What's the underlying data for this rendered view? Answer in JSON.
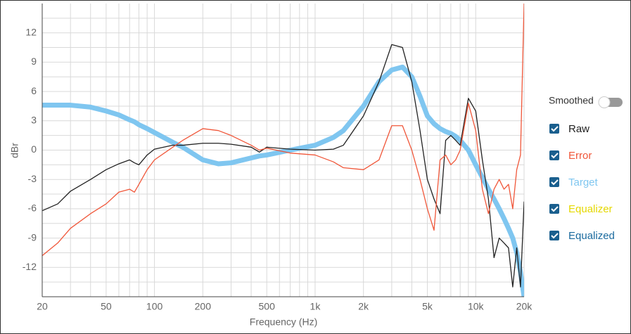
{
  "chart_data": {
    "type": "line",
    "xlabel": "Frequency (Hz)",
    "ylabel": "dBr",
    "xlog": true,
    "xlim": [
      20,
      20000
    ],
    "ylim": [
      -15,
      15
    ],
    "xticks": [
      20,
      50,
      100,
      200,
      500,
      {
        "value": 1000,
        "label": "1k"
      },
      {
        "value": 2000,
        "label": "2k"
      },
      {
        "value": 5000,
        "label": "5k"
      },
      {
        "value": 10000,
        "label": "10k"
      },
      {
        "value": 20000,
        "label": "20k"
      }
    ],
    "xgrid_minor": [
      30,
      40,
      60,
      70,
      80,
      90,
      300,
      400,
      600,
      700,
      800,
      900,
      3000,
      4000,
      6000,
      7000,
      8000,
      9000
    ],
    "yticks": [
      -12,
      -9,
      -6,
      -3,
      0,
      3,
      6,
      9,
      12
    ],
    "ygrid_minor": [
      -13.5,
      -10.5,
      -7.5,
      -4.5,
      -1.5,
      1.5,
      4.5,
      7.5,
      10.5,
      13.5
    ],
    "grid": true,
    "toggle_label": "Smoothed",
    "x": [
      20,
      25,
      30,
      40,
      50,
      60,
      70,
      75,
      80,
      90,
      100,
      130,
      150,
      200,
      250,
      300,
      400,
      450,
      500,
      700,
      1000,
      1300,
      1500,
      2000,
      2500,
      3000,
      3500,
      4000,
      4500,
      5000,
      5500,
      6000,
      6500,
      7000,
      7500,
      8000,
      9000,
      10000,
      11000,
      12000,
      13000,
      14000,
      15000,
      16000,
      17000,
      18000,
      19000,
      20000
    ],
    "series": [
      {
        "name": "Raw",
        "color": "#222222",
        "width": 1.3,
        "values": [
          -6.2,
          -5.5,
          -4.2,
          -3.0,
          -2.0,
          -1.4,
          -1.0,
          -1.3,
          -1.5,
          -0.5,
          0.1,
          0.5,
          0.5,
          0.7,
          0.7,
          0.6,
          0.3,
          -0.2,
          0.3,
          0.1,
          0.0,
          0.1,
          0.5,
          3.5,
          7.0,
          10.8,
          10.5,
          7.0,
          2.0,
          -3.0,
          -5.0,
          -6.5,
          1.0,
          1.5,
          1.0,
          0.5,
          5.3,
          4.0,
          -1.0,
          -5.0,
          -11.0,
          -9.0,
          -9.5,
          -10.0,
          -14.0,
          -10.0,
          -14.0,
          -5.3
        ]
      },
      {
        "name": "Error",
        "color": "#f0573a",
        "width": 1.3,
        "values": [
          -10.8,
          -9.5,
          -8.0,
          -6.5,
          -5.5,
          -4.3,
          -4.0,
          -4.3,
          -3.5,
          -2.0,
          -1.0,
          0.3,
          1.0,
          2.2,
          2.0,
          1.5,
          0.5,
          0.0,
          0.2,
          -0.3,
          -0.5,
          -1.2,
          -1.8,
          -2.0,
          -1.0,
          2.5,
          2.5,
          0.0,
          -3.0,
          -6.0,
          -8.2,
          -1.0,
          -0.5,
          -1.5,
          -1.0,
          0.0,
          4.8,
          2.0,
          -4.0,
          -6.5,
          -4.0,
          -3.0,
          -4.0,
          -3.5,
          -6.0,
          -2.0,
          -0.5,
          15
        ]
      },
      {
        "name": "Target",
        "color": "#7fc6f0",
        "width": 7,
        "values": [
          4.6,
          4.6,
          4.6,
          4.4,
          4.0,
          3.6,
          3.1,
          2.9,
          2.6,
          2.2,
          1.8,
          0.8,
          0.3,
          -1.0,
          -1.4,
          -1.3,
          -0.8,
          -0.6,
          -0.5,
          0.0,
          0.5,
          1.3,
          2.0,
          4.5,
          7.0,
          8.2,
          8.5,
          7.5,
          5.5,
          3.5,
          2.7,
          2.2,
          1.9,
          1.7,
          1.4,
          1.0,
          0.0,
          -1.5,
          -2.8,
          -4.0,
          -5.0,
          -6.0,
          -7.0,
          -8.0,
          -9.0,
          -10.5,
          -12.5,
          -15
        ]
      },
      {
        "name": "Equalizer",
        "color": "#e5d800"
      },
      {
        "name": "Equalized",
        "color": "#1a6a9e"
      }
    ]
  }
}
